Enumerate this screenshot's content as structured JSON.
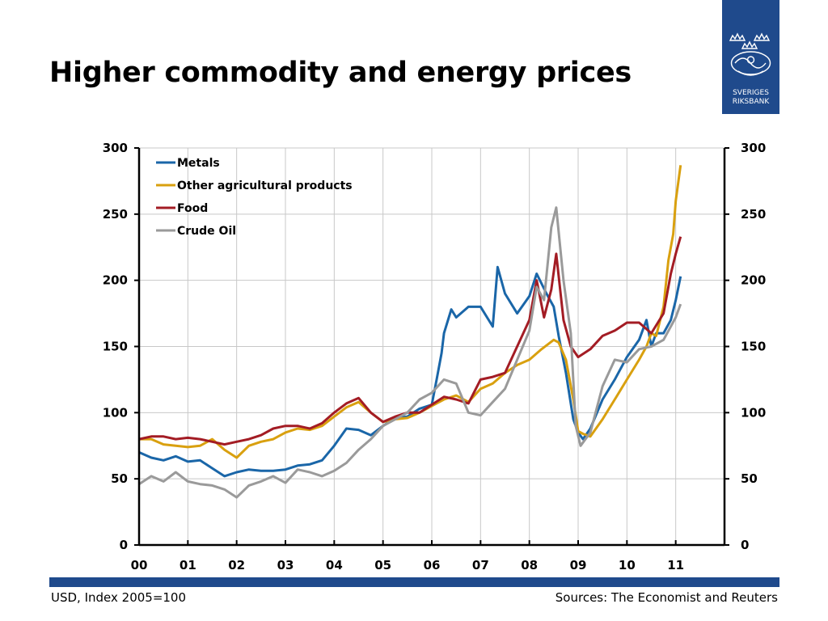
{
  "header": {
    "title": "Higher commodity and energy prices"
  },
  "logo": {
    "line1": "SVERIGES",
    "line2": "RIKSBANK",
    "background": "#1f4a8c"
  },
  "footer": {
    "note": "USD, Index 2005=100",
    "source": "Sources: The Economist and Reuters"
  },
  "chart_data": {
    "type": "line",
    "title": "",
    "xlabel": "",
    "ylabel": "",
    "xlim": [
      0,
      12
    ],
    "ylim": [
      0,
      300
    ],
    "x_ticks": [
      0,
      1,
      2,
      3,
      4,
      5,
      6,
      7,
      8,
      9,
      10,
      11
    ],
    "x_tick_labels": [
      "00",
      "01",
      "02",
      "03",
      "04",
      "05",
      "06",
      "07",
      "08",
      "09",
      "10",
      "11"
    ],
    "y_ticks": [
      0,
      50,
      100,
      150,
      200,
      250,
      300
    ],
    "y_tick_labels": [
      "0",
      "50",
      "100",
      "150",
      "200",
      "250",
      "300"
    ],
    "grid": true,
    "legend_position": "top-left",
    "series": [
      {
        "name": "Metals",
        "color": "#1a66a8",
        "x": [
          0,
          0.25,
          0.5,
          0.75,
          1,
          1.25,
          1.5,
          1.75,
          2,
          2.25,
          2.5,
          2.75,
          3,
          3.25,
          3.5,
          3.75,
          4,
          4.25,
          4.5,
          4.75,
          5,
          5.25,
          5.5,
          5.75,
          6,
          6.1,
          6.2,
          6.25,
          6.4,
          6.5,
          6.75,
          7,
          7.25,
          7.35,
          7.5,
          7.75,
          8,
          8.15,
          8.35,
          8.5,
          8.6,
          8.75,
          8.9,
          9,
          9.1,
          9.25,
          9.5,
          9.75,
          10,
          10.25,
          10.4,
          10.5,
          10.6,
          10.75,
          10.9,
          11,
          11.1
        ],
        "y": [
          70,
          66,
          64,
          67,
          63,
          64,
          58,
          52,
          55,
          57,
          56,
          56,
          57,
          60,
          61,
          64,
          75,
          88,
          87,
          83,
          90,
          96,
          97,
          103,
          106,
          125,
          145,
          160,
          178,
          172,
          180,
          180,
          165,
          210,
          190,
          175,
          188,
          205,
          190,
          180,
          158,
          130,
          95,
          85,
          80,
          88,
          110,
          125,
          142,
          155,
          170,
          150,
          160,
          160,
          170,
          185,
          203
        ]
      },
      {
        "name": "Other agricultural products",
        "color": "#d9a00f",
        "x": [
          0,
          0.25,
          0.5,
          0.75,
          1,
          1.25,
          1.5,
          1.75,
          2,
          2.25,
          2.5,
          2.75,
          3,
          3.25,
          3.5,
          3.75,
          4,
          4.25,
          4.5,
          4.75,
          5,
          5.25,
          5.5,
          5.75,
          6,
          6.25,
          6.5,
          6.75,
          7,
          7.25,
          7.5,
          7.75,
          8,
          8.25,
          8.5,
          8.6,
          8.75,
          8.9,
          9,
          9.1,
          9.25,
          9.5,
          9.75,
          10,
          10.25,
          10.4,
          10.5,
          10.6,
          10.75,
          10.85,
          10.95,
          11,
          11.1
        ],
        "y": [
          80,
          80,
          76,
          75,
          74,
          75,
          80,
          72,
          66,
          75,
          78,
          80,
          85,
          88,
          87,
          90,
          97,
          104,
          108,
          100,
          93,
          95,
          96,
          100,
          105,
          110,
          113,
          108,
          118,
          122,
          130,
          136,
          140,
          148,
          155,
          153,
          140,
          110,
          86,
          84,
          82,
          95,
          110,
          125,
          140,
          150,
          160,
          158,
          180,
          215,
          235,
          260,
          287
        ]
      },
      {
        "name": "Food",
        "color": "#a31c24",
        "x": [
          0,
          0.25,
          0.5,
          0.75,
          1,
          1.25,
          1.5,
          1.75,
          2,
          2.25,
          2.5,
          2.75,
          3,
          3.25,
          3.5,
          3.75,
          4,
          4.25,
          4.5,
          4.75,
          5,
          5.25,
          5.5,
          5.75,
          6,
          6.25,
          6.5,
          6.75,
          7,
          7.25,
          7.5,
          7.75,
          8,
          8.15,
          8.3,
          8.45,
          8.55,
          8.7,
          8.85,
          9,
          9.25,
          9.5,
          9.75,
          10,
          10.25,
          10.5,
          10.75,
          10.9,
          11,
          11.1
        ],
        "y": [
          80,
          82,
          82,
          80,
          81,
          80,
          78,
          76,
          78,
          80,
          83,
          88,
          90,
          90,
          88,
          92,
          100,
          107,
          111,
          100,
          93,
          97,
          100,
          100,
          106,
          112,
          110,
          107,
          125,
          127,
          130,
          150,
          170,
          200,
          172,
          193,
          220,
          170,
          150,
          142,
          148,
          158,
          162,
          168,
          168,
          160,
          175,
          205,
          220,
          233
        ]
      },
      {
        "name": "Crude Oil",
        "color": "#9a9a9a",
        "x": [
          0,
          0.25,
          0.5,
          0.75,
          1,
          1.25,
          1.5,
          1.75,
          2,
          2.25,
          2.5,
          2.75,
          3,
          3.25,
          3.5,
          3.75,
          4,
          4.25,
          4.5,
          4.75,
          5,
          5.25,
          5.5,
          5.75,
          6,
          6.25,
          6.5,
          6.75,
          7,
          7.25,
          7.5,
          7.75,
          8,
          8.15,
          8.3,
          8.45,
          8.55,
          8.7,
          8.85,
          8.95,
          9.05,
          9.25,
          9.5,
          9.75,
          10,
          10.25,
          10.5,
          10.75,
          11,
          11.1
        ],
        "y": [
          46,
          52,
          48,
          55,
          48,
          46,
          45,
          42,
          36,
          45,
          48,
          52,
          47,
          57,
          55,
          52,
          56,
          62,
          72,
          80,
          90,
          95,
          100,
          110,
          115,
          125,
          122,
          100,
          98,
          108,
          118,
          140,
          162,
          195,
          185,
          240,
          255,
          200,
          160,
          90,
          75,
          85,
          120,
          140,
          138,
          148,
          150,
          155,
          172,
          182
        ]
      }
    ]
  }
}
